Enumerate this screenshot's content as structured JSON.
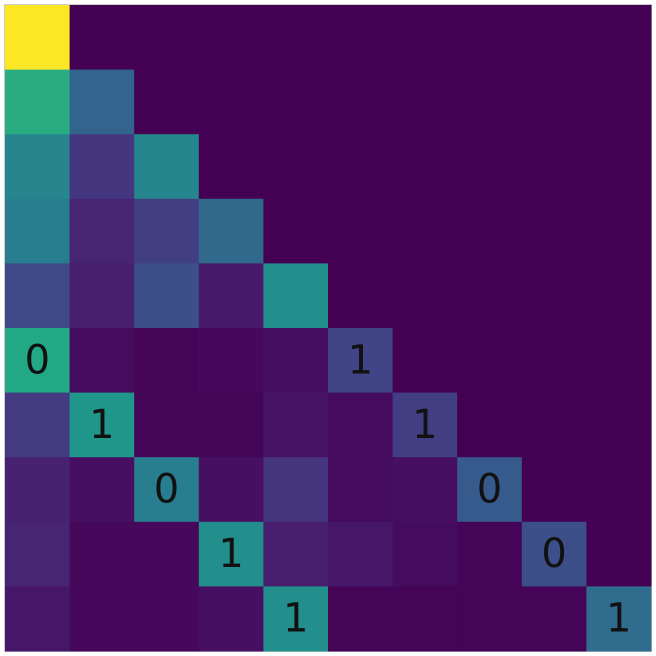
{
  "chart_data": {
    "type": "heatmap",
    "title": "",
    "xlabel": "",
    "ylabel": "",
    "rows": 10,
    "cols": 10,
    "colormap": "viridis",
    "value_range": [
      0,
      1
    ],
    "grid": false,
    "values": [
      [
        1.0,
        0.0,
        0.0,
        0.0,
        0.0,
        0.0,
        0.0,
        0.0,
        0.0,
        0.0
      ],
      [
        0.62,
        0.32,
        0.0,
        0.0,
        0.0,
        0.0,
        0.0,
        0.0,
        0.0,
        0.0
      ],
      [
        0.45,
        0.16,
        0.46,
        0.0,
        0.0,
        0.0,
        0.0,
        0.0,
        0.0,
        0.0
      ],
      [
        0.42,
        0.1,
        0.18,
        0.34,
        0.0,
        0.0,
        0.0,
        0.0,
        0.0,
        0.0
      ],
      [
        0.22,
        0.08,
        0.24,
        0.07,
        0.49,
        0.0,
        0.0,
        0.0,
        0.0,
        0.0
      ],
      [
        0.6,
        0.03,
        0.01,
        0.02,
        0.04,
        0.2,
        0.0,
        0.0,
        0.0,
        0.0
      ],
      [
        0.17,
        0.52,
        0.01,
        0.01,
        0.05,
        0.03,
        0.18,
        0.0,
        0.0,
        0.0
      ],
      [
        0.09,
        0.04,
        0.42,
        0.04,
        0.15,
        0.03,
        0.04,
        0.28,
        0.0,
        0.0
      ],
      [
        0.1,
        0.02,
        0.02,
        0.49,
        0.08,
        0.06,
        0.03,
        0.01,
        0.24,
        0.0
      ],
      [
        0.06,
        0.02,
        0.02,
        0.04,
        0.49,
        0.01,
        0.01,
        0.01,
        0.01,
        0.35
      ]
    ],
    "annotations": [
      {
        "row": 5,
        "col": 0,
        "text": "0"
      },
      {
        "row": 5,
        "col": 5,
        "text": "1"
      },
      {
        "row": 6,
        "col": 1,
        "text": "1"
      },
      {
        "row": 6,
        "col": 6,
        "text": "1"
      },
      {
        "row": 7,
        "col": 2,
        "text": "0"
      },
      {
        "row": 7,
        "col": 7,
        "text": "0"
      },
      {
        "row": 8,
        "col": 3,
        "text": "1"
      },
      {
        "row": 8,
        "col": 8,
        "text": "0"
      },
      {
        "row": 9,
        "col": 4,
        "text": "1"
      },
      {
        "row": 9,
        "col": 9,
        "text": "1"
      }
    ]
  }
}
